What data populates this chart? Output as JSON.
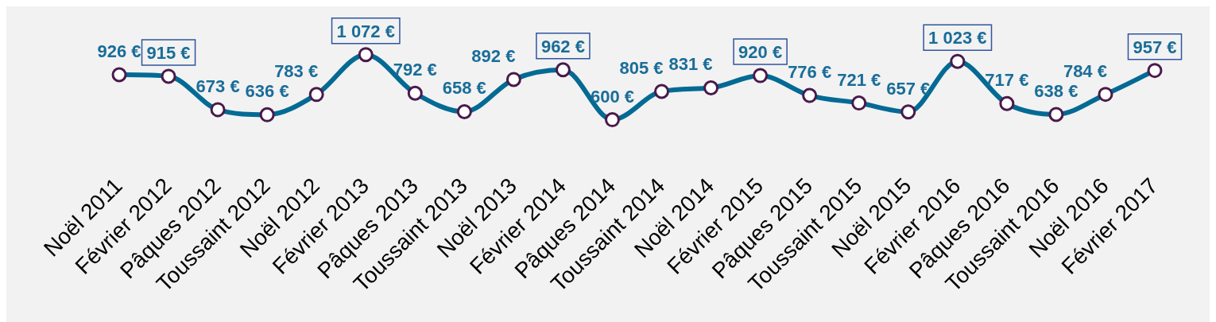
{
  "chart_data": {
    "type": "line",
    "categories": [
      "Noël 2011",
      "Février 2012",
      "Pâques 2012",
      "Toussaint 2012",
      "Noël 2012",
      "Février 2013",
      "Pâques 2013",
      "Toussaint 2013",
      "Noël 2013",
      "Février 2014",
      "Pâques 2014",
      "Toussaint 2014",
      "Noël 2014",
      "Février 2015",
      "Pâques 2015",
      "Toussaint 2015",
      "Noël 2015",
      "Février 2016",
      "Pâques 2016",
      "Toussaint 2016",
      "Noël 2016",
      "Février 2017"
    ],
    "values": [
      926,
      915,
      673,
      636,
      783,
      1072,
      792,
      658,
      892,
      962,
      600,
      805,
      831,
      920,
      776,
      721,
      657,
      1023,
      717,
      638,
      784,
      957
    ],
    "value_labels": [
      "926 €",
      "915 €",
      "673 €",
      "636 €",
      "783 €",
      "1 072 €",
      "792 €",
      "658 €",
      "892 €",
      "962 €",
      "600 €",
      "805 €",
      "831 €",
      "920 €",
      "776 €",
      "721 €",
      "657 €",
      "1 023 €",
      "717 €",
      "638 €",
      "784 €",
      "957 €"
    ],
    "color": "#036a94",
    "marker": "circle"
  }
}
